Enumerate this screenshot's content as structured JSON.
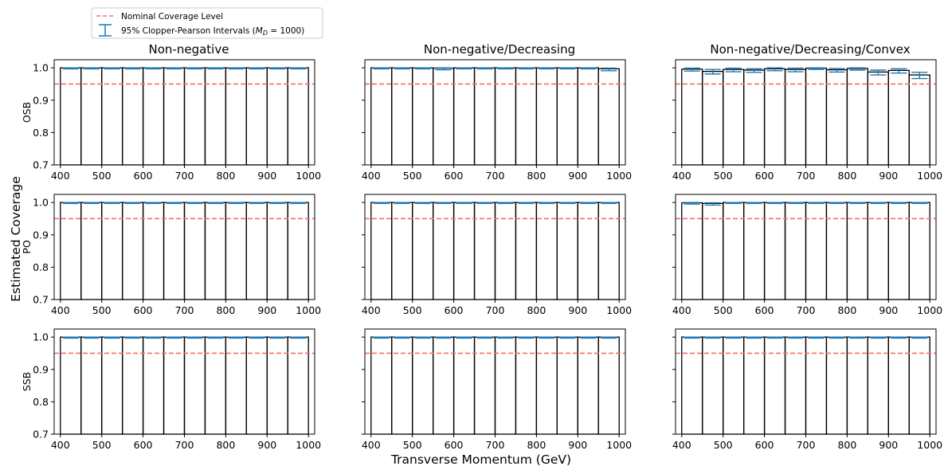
{
  "legend": {
    "nominal_label": "Nominal Coverage Level",
    "interval_label": "95% Clopper-Pearson Intervals (",
    "interval_label_math": "M",
    "interval_label_sub": "D",
    "interval_label_rest": " = 1000)"
  },
  "supxlabel": "Transverse Momentum (GeV)",
  "supylabel": "Estimated Coverage",
  "columns": [
    "Non-negative",
    "Non-negative/Decreasing",
    "Non-negative/Decreasing/Convex"
  ],
  "rows": [
    "OSB",
    "PO",
    "SSB"
  ],
  "colors": {
    "nominal_line": "#f07070",
    "interval": "#1f77b4",
    "bar_edge": "#000000"
  },
  "chart_data": {
    "type": "bar",
    "subtype": "step-histogram-with-error-bars",
    "bin_edges": [
      400,
      450,
      500,
      550,
      600,
      650,
      700,
      750,
      800,
      850,
      900,
      950,
      1000
    ],
    "xticks": [
      400,
      500,
      600,
      700,
      800,
      900,
      1000
    ],
    "xlim": [
      385,
      1015
    ],
    "yticks": [
      0.7,
      0.8,
      0.9,
      1.0
    ],
    "ytick_labels": [
      "0.7",
      "0.8",
      "0.9",
      "1.0"
    ],
    "ylim": [
      0.7,
      1.025
    ],
    "nominal_level": 0.95,
    "sharey": true,
    "panels": [
      {
        "row": "OSB",
        "col": "Non-negative",
        "values": [
          1.0,
          1.0,
          1.0,
          1.0,
          1.0,
          1.0,
          1.0,
          1.0,
          1.0,
          1.0,
          1.0,
          1.0
        ],
        "lower": [
          0.997,
          0.997,
          0.997,
          0.997,
          0.997,
          0.997,
          0.997,
          0.997,
          0.997,
          0.997,
          0.997,
          0.997
        ],
        "upper": [
          1.0,
          1.0,
          1.0,
          1.0,
          1.0,
          1.0,
          1.0,
          1.0,
          1.0,
          1.0,
          1.0,
          1.0
        ]
      },
      {
        "row": "OSB",
        "col": "Non-negative/Decreasing",
        "values": [
          1.0,
          1.0,
          1.0,
          0.999,
          1.0,
          1.0,
          1.0,
          1.0,
          1.0,
          1.0,
          1.0,
          0.997
        ],
        "lower": [
          0.997,
          0.997,
          0.997,
          0.994,
          0.997,
          0.997,
          0.997,
          0.997,
          0.997,
          0.997,
          0.997,
          0.991
        ],
        "upper": [
          1.0,
          1.0,
          1.0,
          1.0,
          1.0,
          1.0,
          1.0,
          1.0,
          1.0,
          1.0,
          1.0,
          0.999
        ]
      },
      {
        "row": "OSB",
        "col": "Non-negative/Decreasing/Convex",
        "values": [
          0.996,
          0.989,
          0.995,
          0.993,
          0.997,
          0.995,
          0.999,
          0.994,
          0.998,
          0.987,
          0.992,
          0.978
        ],
        "lower": [
          0.99,
          0.981,
          0.988,
          0.986,
          0.991,
          0.988,
          0.995,
          0.987,
          0.993,
          0.978,
          0.984,
          0.967
        ],
        "upper": [
          0.999,
          0.995,
          0.999,
          0.997,
          1.0,
          0.999,
          1.0,
          0.998,
          1.0,
          0.993,
          0.997,
          0.986
        ]
      },
      {
        "row": "PO",
        "col": "Non-negative",
        "values": [
          1.0,
          1.0,
          1.0,
          1.0,
          1.0,
          1.0,
          1.0,
          1.0,
          1.0,
          1.0,
          1.0,
          1.0
        ],
        "lower": [
          0.997,
          0.997,
          0.997,
          0.997,
          0.997,
          0.997,
          0.997,
          0.997,
          0.997,
          0.997,
          0.997,
          0.997
        ],
        "upper": [
          1.0,
          1.0,
          1.0,
          1.0,
          1.0,
          1.0,
          1.0,
          1.0,
          1.0,
          1.0,
          1.0,
          1.0
        ]
      },
      {
        "row": "PO",
        "col": "Non-negative/Decreasing",
        "values": [
          1.0,
          1.0,
          1.0,
          1.0,
          1.0,
          1.0,
          1.0,
          1.0,
          1.0,
          1.0,
          1.0,
          1.0
        ],
        "lower": [
          0.997,
          0.997,
          0.997,
          0.997,
          0.997,
          0.997,
          0.997,
          0.997,
          0.997,
          0.997,
          0.997,
          0.997
        ],
        "upper": [
          1.0,
          1.0,
          1.0,
          1.0,
          1.0,
          1.0,
          1.0,
          1.0,
          1.0,
          1.0,
          1.0,
          1.0
        ]
      },
      {
        "row": "PO",
        "col": "Non-negative/Decreasing/Convex",
        "values": [
          0.999,
          0.997,
          1.0,
          1.0,
          1.0,
          1.0,
          1.0,
          1.0,
          1.0,
          1.0,
          1.0,
          1.0
        ],
        "lower": [
          0.995,
          0.992,
          0.997,
          0.997,
          0.997,
          0.997,
          0.997,
          0.997,
          0.997,
          0.997,
          0.997,
          0.997
        ],
        "upper": [
          1.0,
          0.999,
          1.0,
          1.0,
          1.0,
          1.0,
          1.0,
          1.0,
          1.0,
          1.0,
          1.0,
          1.0
        ]
      },
      {
        "row": "SSB",
        "col": "Non-negative",
        "values": [
          1.0,
          1.0,
          1.0,
          1.0,
          1.0,
          1.0,
          1.0,
          1.0,
          1.0,
          1.0,
          1.0,
          1.0
        ],
        "lower": [
          0.997,
          0.997,
          0.997,
          0.997,
          0.997,
          0.997,
          0.997,
          0.997,
          0.997,
          0.997,
          0.997,
          0.997
        ],
        "upper": [
          1.0,
          1.0,
          1.0,
          1.0,
          1.0,
          1.0,
          1.0,
          1.0,
          1.0,
          1.0,
          1.0,
          1.0
        ]
      },
      {
        "row": "SSB",
        "col": "Non-negative/Decreasing",
        "values": [
          1.0,
          1.0,
          1.0,
          1.0,
          1.0,
          1.0,
          1.0,
          1.0,
          1.0,
          1.0,
          1.0,
          1.0
        ],
        "lower": [
          0.997,
          0.997,
          0.997,
          0.997,
          0.997,
          0.997,
          0.997,
          0.997,
          0.997,
          0.997,
          0.997,
          0.997
        ],
        "upper": [
          1.0,
          1.0,
          1.0,
          1.0,
          1.0,
          1.0,
          1.0,
          1.0,
          1.0,
          1.0,
          1.0,
          1.0
        ]
      },
      {
        "row": "SSB",
        "col": "Non-negative/Decreasing/Convex",
        "values": [
          1.0,
          1.0,
          1.0,
          1.0,
          1.0,
          1.0,
          1.0,
          1.0,
          1.0,
          1.0,
          1.0,
          1.0
        ],
        "lower": [
          0.997,
          0.997,
          0.997,
          0.997,
          0.997,
          0.997,
          0.997,
          0.997,
          0.997,
          0.997,
          0.997,
          0.997
        ],
        "upper": [
          1.0,
          1.0,
          1.0,
          1.0,
          1.0,
          1.0,
          1.0,
          1.0,
          1.0,
          1.0,
          1.0,
          1.0
        ]
      }
    ]
  }
}
